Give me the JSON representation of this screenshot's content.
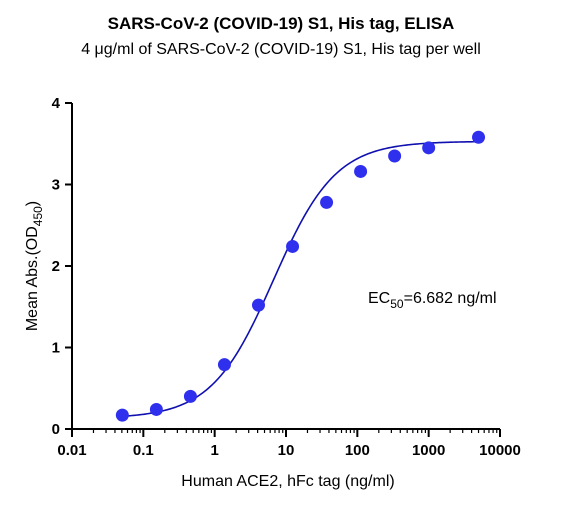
{
  "chart_data": {
    "type": "scatter",
    "title": "SARS-CoV-2 (COVID-19) S1, His tag, ELISA",
    "subtitle": "4 μg/ml of SARS-CoV-2 (COVID-19) S1, His tag per well",
    "xlabel": "Human ACE2, hFc tag (ng/ml)",
    "ylabel": {
      "main": "Mean Abs.(OD",
      "sub": "450",
      "close": ")"
    },
    "x_scale": "log",
    "xlim": [
      0.01,
      10000
    ],
    "ylim": [
      0,
      4
    ],
    "x_ticks": [
      0.01,
      0.1,
      1,
      10,
      100,
      1000,
      10000
    ],
    "x_tick_labels": [
      "0.01",
      "0.1",
      "1",
      "10",
      "100",
      "1000",
      "10000"
    ],
    "y_ticks": [
      0,
      1,
      2,
      3,
      4
    ],
    "y_tick_labels": [
      "0",
      "1",
      "2",
      "3",
      "4"
    ],
    "grid": false,
    "series": [
      {
        "x": [
          0.0508,
          0.1524,
          0.4572,
          1.372,
          4.115,
          12.35,
          37.04,
          111.1,
          333.3,
          1000,
          5000
        ],
        "y": [
          0.17,
          0.24,
          0.4,
          0.79,
          1.52,
          2.24,
          2.78,
          3.16,
          3.35,
          3.45,
          3.58
        ],
        "color": "#2f2fee"
      }
    ],
    "fit_curve": {
      "bottom": 0.13,
      "top": 3.53,
      "ec50": 6.682,
      "hill": 1.0,
      "color": "#1010b0"
    },
    "annotation": {
      "prefix": "EC",
      "sub": "50",
      "suffix": "=6.682 ng/ml"
    }
  }
}
